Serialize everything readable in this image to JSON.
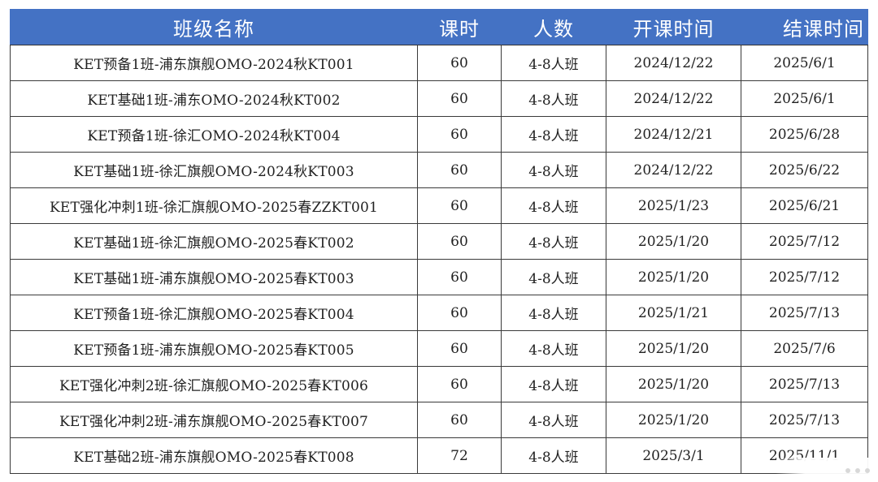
{
  "table": {
    "headers": {
      "name": "班级名称",
      "hours": "课时",
      "size": "人数",
      "start": "开课时间",
      "end": "结课时间"
    },
    "rows": [
      {
        "name": "KET预备1班-浦东旗舰OMO-2024秋KT001",
        "hours": "60",
        "size": "4-8人班",
        "start": "2024/12/22",
        "end": "2025/6/1"
      },
      {
        "name": "KET基础1班-浦东OMO-2024秋KT002",
        "hours": "60",
        "size": "4-8人班",
        "start": "2024/12/22",
        "end": "2025/6/1"
      },
      {
        "name": "KET预备1班-徐汇OMO-2024秋KT004",
        "hours": "60",
        "size": "4-8人班",
        "start": "2024/12/21",
        "end": "2025/6/28"
      },
      {
        "name": "KET基础1班-徐汇旗舰OMO-2024秋KT003",
        "hours": "60",
        "size": "4-8人班",
        "start": "2024/12/22",
        "end": "2025/6/22"
      },
      {
        "name": "KET强化冲刺1班-徐汇旗舰OMO-2025春ZZKT001",
        "hours": "60",
        "size": "4-8人班",
        "start": "2025/1/23",
        "end": "2025/6/21"
      },
      {
        "name": "KET基础1班-徐汇旗舰OMO-2025春KT002",
        "hours": "60",
        "size": "4-8人班",
        "start": "2025/1/20",
        "end": "2025/7/12"
      },
      {
        "name": "KET基础1班-浦东旗舰OMO-2025春KT003",
        "hours": "60",
        "size": "4-8人班",
        "start": "2025/1/20",
        "end": "2025/7/12"
      },
      {
        "name": "KET预备1班-徐汇旗舰OMO-2025春KT004",
        "hours": "60",
        "size": "4-8人班",
        "start": "2025/1/21",
        "end": "2025/7/13"
      },
      {
        "name": "KET预备1班-浦东旗舰OMO-2025春KT005",
        "hours": "60",
        "size": "4-8人班",
        "start": "2025/1/20",
        "end": "2025/7/6"
      },
      {
        "name": "KET强化冲刺2班-徐汇旗舰OMO-2025春KT006",
        "hours": "60",
        "size": "4-8人班",
        "start": "2025/1/20",
        "end": "2025/7/13"
      },
      {
        "name": "KET强化冲刺2班-浦东旗舰OMO-2025春KT007",
        "hours": "60",
        "size": "4-8人班",
        "start": "2025/1/20",
        "end": "2025/7/13"
      },
      {
        "name": "KET基础2班-浦东旗舰OMO-2025春KT008",
        "hours": "72",
        "size": "4-8人班",
        "start": "2025/3/1",
        "end": "2025/11/1"
      }
    ]
  }
}
